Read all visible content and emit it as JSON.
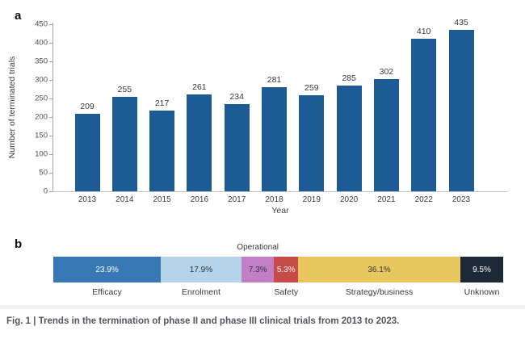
{
  "panel_labels": {
    "a": "a",
    "b": "b"
  },
  "caption": "Fig. 1 | Trends in the termination of phase II and phase III clinical trials from 2013 to 2023.",
  "colors": {
    "bar_blue": "#1d5b94",
    "efficacy": "#3878b4",
    "enrolment": "#b5d3e9",
    "operational": "#c27fc6",
    "safety": "#c64b49",
    "strategy_business": "#e9c75f",
    "unknown": "#1d2936",
    "axis_gray": "#a5a5a7",
    "caption_gray": "#55565b"
  },
  "chart_data": [
    {
      "type": "bar",
      "panel": "a",
      "title": "",
      "categories": [
        "2013",
        "2014",
        "2015",
        "2016",
        "2017",
        "2018",
        "2019",
        "2020",
        "2021",
        "2022",
        "2023"
      ],
      "values": [
        209,
        255,
        217,
        261,
        234,
        281,
        259,
        285,
        302,
        410,
        435
      ],
      "xlabel": "Year",
      "ylabel": "Number of terminated trials",
      "ylim": [
        0,
        450
      ],
      "ytick_step": 50,
      "grid": false,
      "value_labels_shown": true,
      "bar_color": "#1d5b94"
    },
    {
      "type": "stacked-bar-horizontal",
      "panel": "b",
      "title": "",
      "segments": [
        {
          "label": "Efficacy",
          "value_pct": 23.9,
          "display": "23.9%",
          "color": "#3878b4",
          "text_color": "#ffffff",
          "label_position": "below"
        },
        {
          "label": "Enrolment",
          "value_pct": 17.9,
          "display": "17.9%",
          "color": "#b5d3e9",
          "text_color": "#2e3440",
          "label_position": "below"
        },
        {
          "label": "Operational",
          "value_pct": 7.3,
          "display": "7.3%",
          "color": "#c27fc6",
          "text_color": "#2e3440",
          "label_position": "above"
        },
        {
          "label": "Safety",
          "value_pct": 5.3,
          "display": "5.3%",
          "color": "#c64b49",
          "text_color": "#ffffff",
          "label_position": "below"
        },
        {
          "label": "Strategy/business",
          "value_pct": 36.1,
          "display": "36.1%",
          "color": "#e9c75f",
          "text_color": "#2e3440",
          "label_position": "below"
        },
        {
          "label": "Unknown",
          "value_pct": 9.5,
          "display": "9.5%",
          "color": "#1d2936",
          "text_color": "#ffffff",
          "label_position": "below"
        }
      ]
    }
  ]
}
